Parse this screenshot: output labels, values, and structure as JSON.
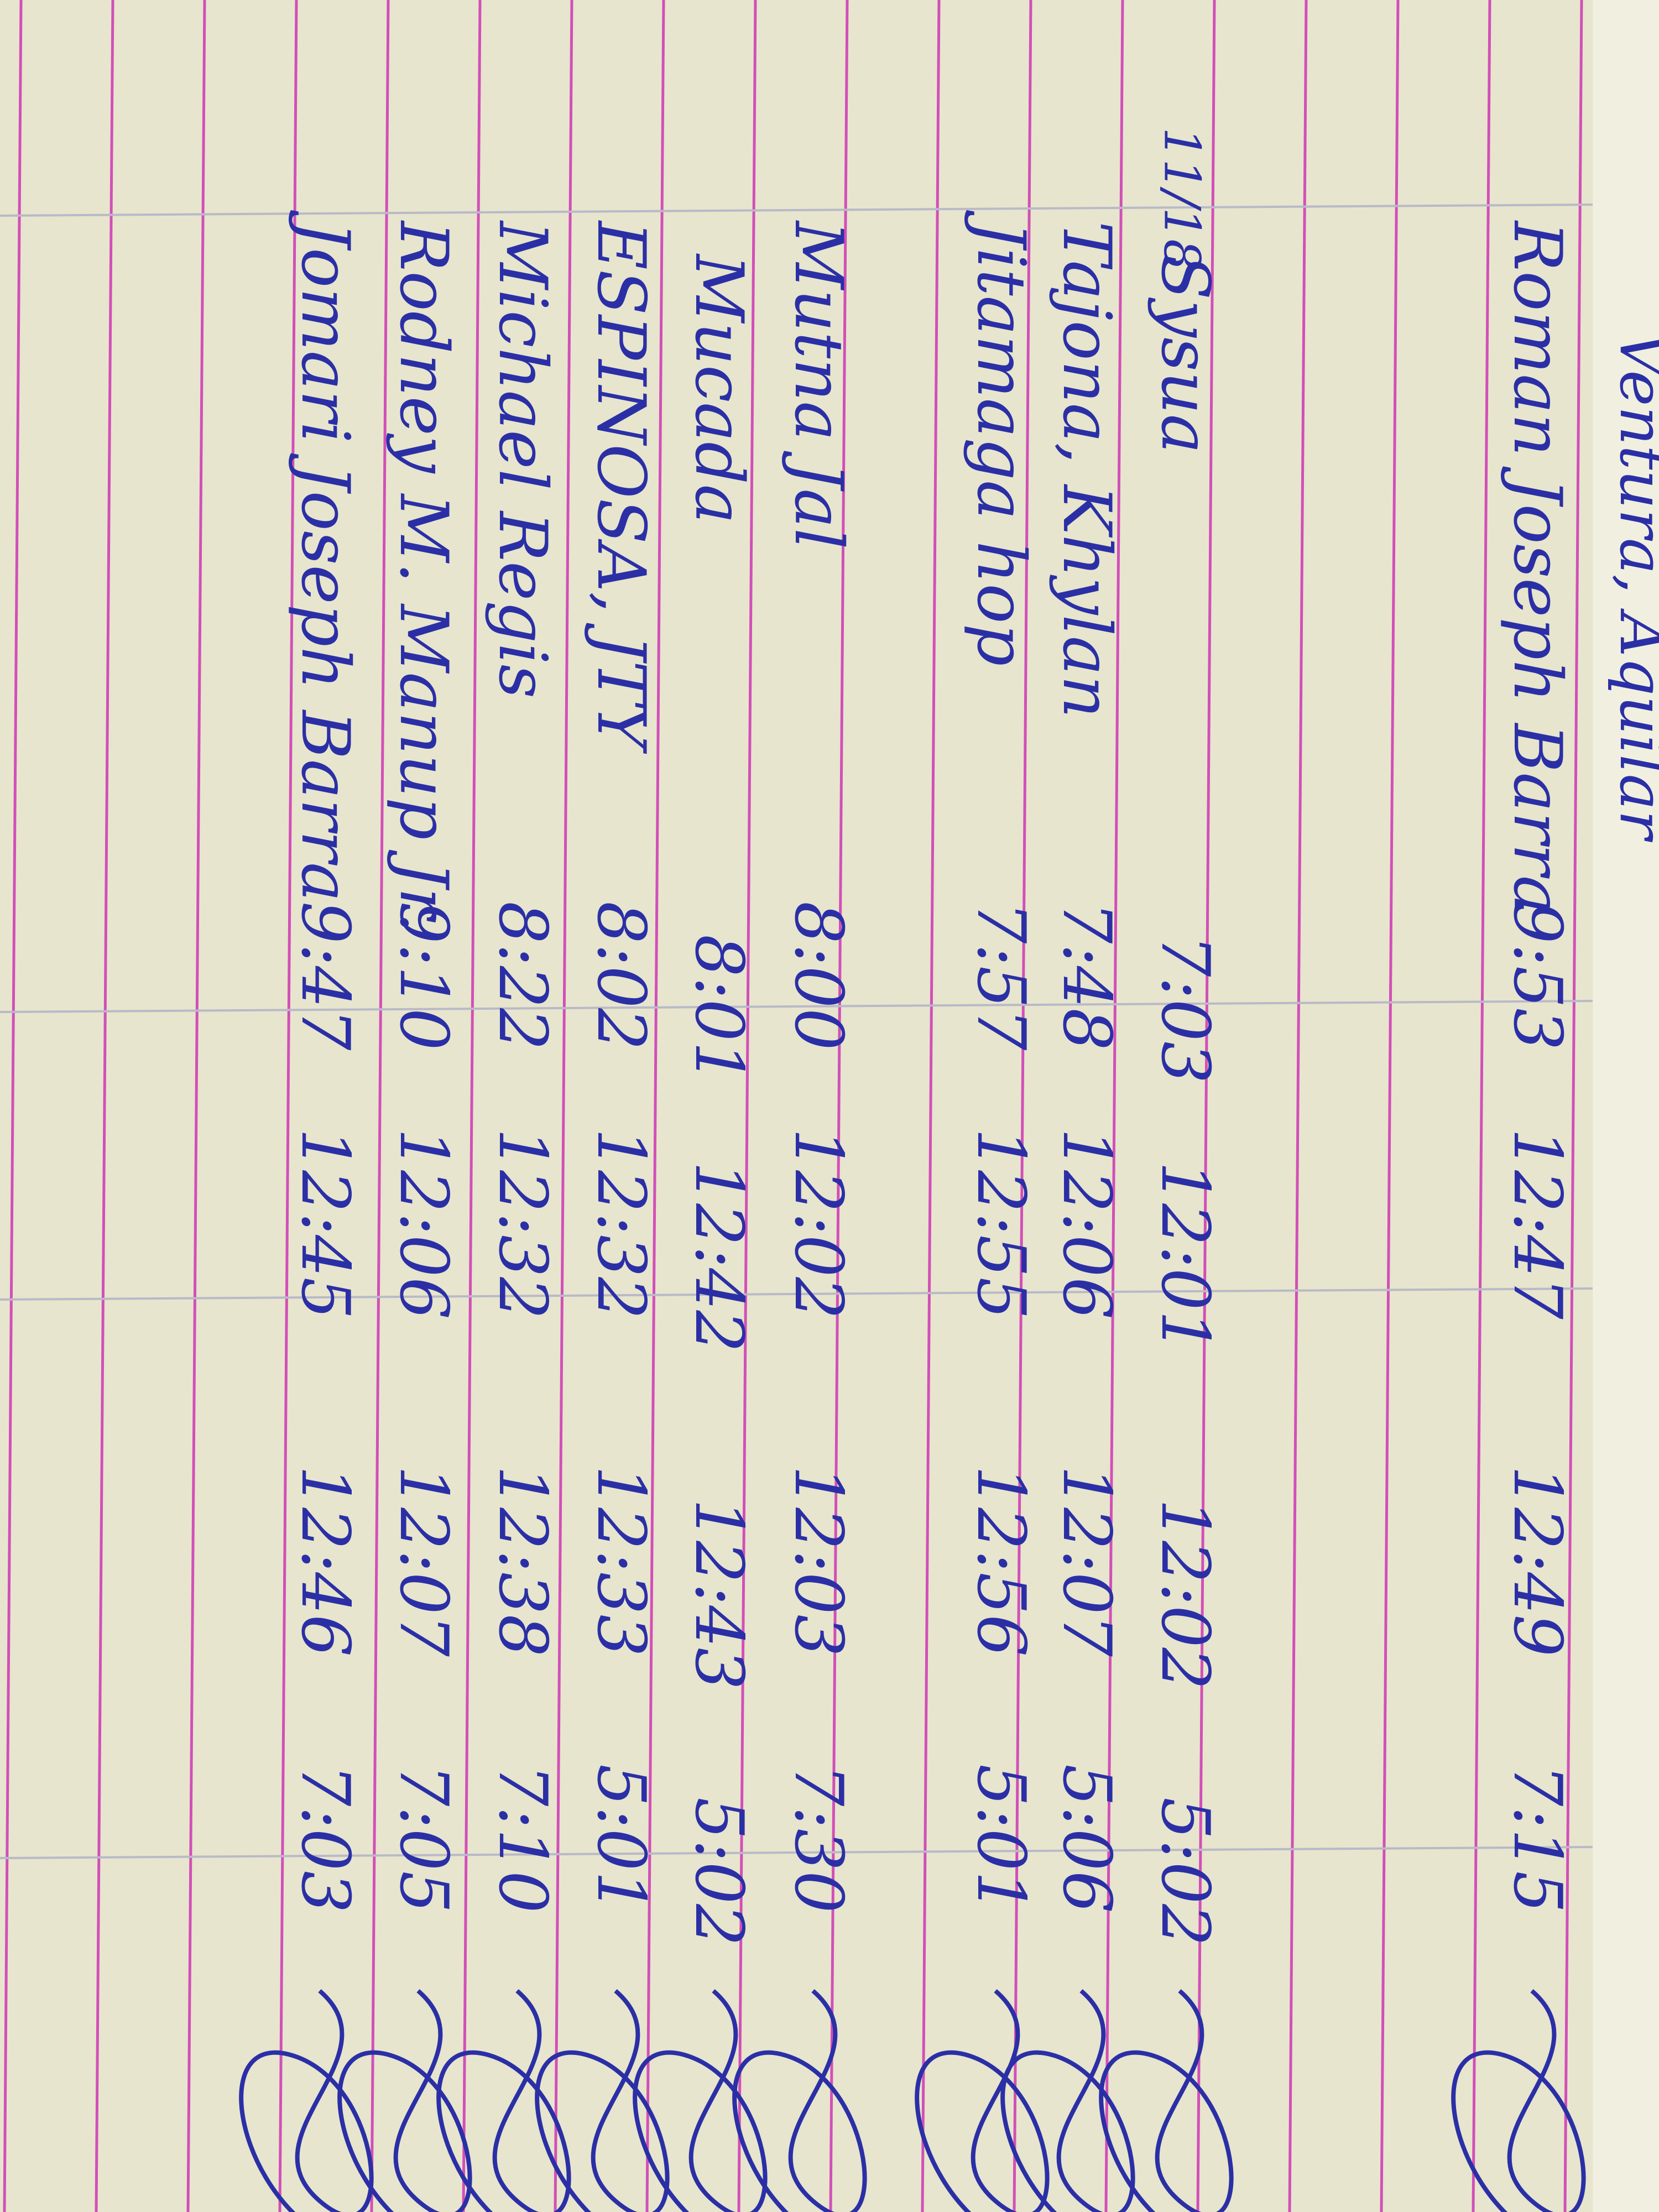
{
  "header": {
    "note": "Ventura, Aquilar",
    "date": "11/18"
  },
  "table": {
    "rows": [
      [
        "Roman Joseph Barra",
        "9:53",
        "12:47",
        "12:49",
        "7:15"
      ],
      [
        "Sysua",
        "7:03",
        "12:01",
        "12:02",
        "5:02"
      ],
      [
        "Tajona, Khylan",
        "7:48",
        "12:06",
        "12:07",
        "5:06"
      ],
      [
        "Jitamaga hop",
        "7:57",
        "12:55",
        "12:56",
        "5:01"
      ],
      [
        "Mutna Jal",
        "8:00",
        "12:02",
        "12:03",
        "7:30"
      ],
      [
        "Mucada",
        "8:01",
        "12:42",
        "12:43",
        "5:02"
      ],
      [
        "ESPINOSA, JTY",
        "8:02",
        "12:32",
        "12:33",
        "5:01"
      ],
      [
        "Michael Regis",
        "8:22",
        "12:32",
        "12:38",
        "7:10"
      ],
      [
        "Rodney M. Manup Jr.",
        "9:10",
        "12:06",
        "12:07",
        "7:05"
      ],
      [
        "Jomari Joseph Barra",
        "9:47",
        "12:45",
        "12:46",
        "7:03"
      ]
    ]
  }
}
